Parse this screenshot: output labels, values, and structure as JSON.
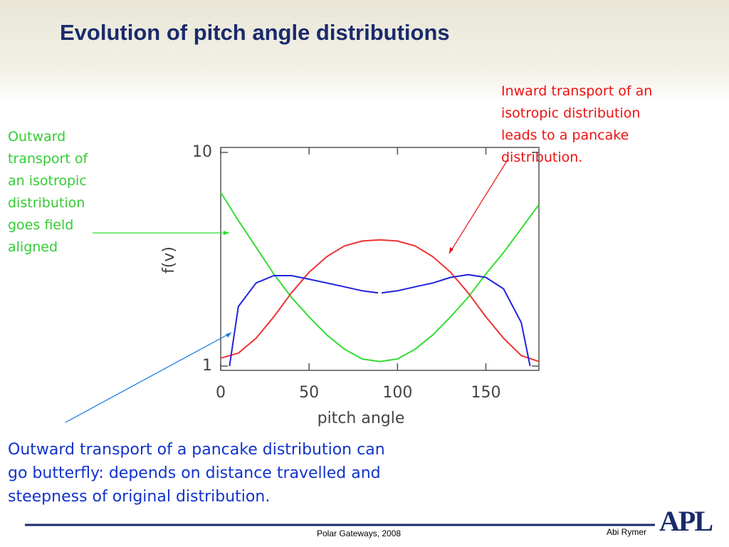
{
  "title": "Evolution of pitch angle distributions",
  "annotations": {
    "left": "Outward\ntransport of\nan isotropic\ndistribution\ngoes field\naligned",
    "right": "Inward transport of an\nisotropic distribution\nleads to a pancake\ndistribution.",
    "bottom": "Outward transport of a pancake distribution can\ngo butterfly: depends on distance travelled and\nsteepness of original distribution."
  },
  "footer": {
    "center": "Polar Gateways, 2008",
    "right": "Abi Rymer",
    "logo": "APL"
  },
  "chart_data": {
    "type": "line",
    "x_label": "pitch angle",
    "y_label": "f(v)",
    "xlim": [
      0,
      180
    ],
    "xticks": [
      0,
      50,
      100,
      150
    ],
    "ylim": [
      1,
      10
    ],
    "yticks": [
      1,
      10
    ],
    "log_y": true,
    "series": [
      {
        "color": "#33dd33",
        "x": [
          0,
          10,
          20,
          30,
          40,
          50,
          60,
          70,
          80,
          90,
          100,
          110,
          120,
          130,
          140,
          150,
          160,
          170,
          180
        ],
        "values": [
          6.5,
          4.8,
          3.6,
          2.7,
          2.1,
          1.7,
          1.4,
          1.2,
          1.08,
          1.05,
          1.08,
          1.2,
          1.4,
          1.7,
          2.1,
          2.7,
          3.4,
          4.4,
          5.7
        ]
      },
      {
        "color": "#ee3333",
        "x": [
          0,
          10,
          20,
          30,
          40,
          50,
          60,
          70,
          80,
          90,
          100,
          110,
          120,
          130,
          140,
          150,
          160,
          170,
          180
        ],
        "values": [
          1.09,
          1.15,
          1.35,
          1.7,
          2.2,
          2.75,
          3.25,
          3.65,
          3.85,
          3.9,
          3.85,
          3.65,
          3.25,
          2.75,
          2.2,
          1.7,
          1.35,
          1.12,
          1.05
        ]
      },
      {
        "color": "#2222dd",
        "x": [
          5,
          10,
          20,
          30,
          40,
          50,
          60,
          70,
          80,
          89,
          90,
          91,
          100,
          110,
          120,
          130,
          140,
          150,
          160,
          170,
          175
        ],
        "values": [
          1.0,
          1.9,
          2.45,
          2.65,
          2.65,
          2.55,
          2.45,
          2.35,
          2.25,
          2.2,
          null,
          2.2,
          2.25,
          2.35,
          2.45,
          2.6,
          2.68,
          2.6,
          2.3,
          1.6,
          1.0
        ]
      }
    ]
  }
}
